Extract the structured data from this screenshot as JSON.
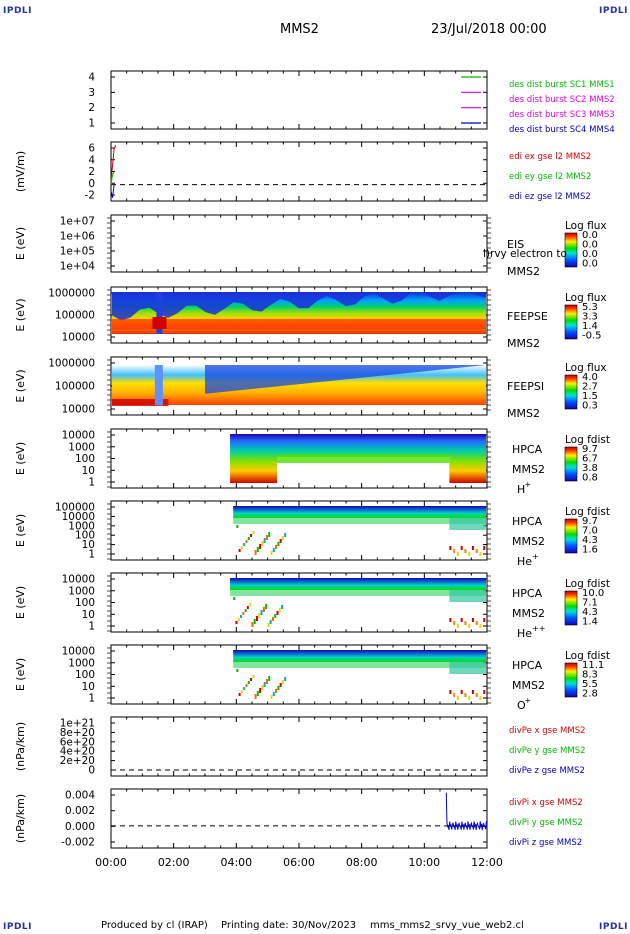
{
  "header": {
    "corner_tl": "IPDLI",
    "corner_tr": "IPDLI",
    "corner_bl": "IPDLI",
    "corner_br": "IPDLI",
    "title": "MMS2",
    "datetime": "23/Jul/2018 00:00"
  },
  "footer": {
    "produced_by": "Produced by cl (IRAP)",
    "printing_date": "Printing date: 30/Nov/2023",
    "script": "mms_mms2_srvy_vue_web2.cl"
  },
  "colors": {
    "red": "#dd0000",
    "green": "#00bb00",
    "blue": "#0000cc",
    "magenta": "#dd00dd",
    "axis": "#000000"
  },
  "chart_data": [
    {
      "type": "line",
      "panel": "burst",
      "yticks": [
        "4",
        "3",
        "2",
        "1"
      ],
      "series": [
        {
          "name": "des dist burst SC1 MMS1",
          "color": "#00bb00",
          "level": 4
        },
        {
          "name": "des dist burst SC2 MMS2",
          "color": "#dd00dd",
          "level": 3
        },
        {
          "name": "des dist burst SC3 MMS3",
          "color": "#dd00dd",
          "level": 2
        },
        {
          "name": "des dist burst SC4 MMS4",
          "color": "#0000cc",
          "level": 1
        }
      ]
    },
    {
      "type": "line",
      "panel": "edi",
      "ylabel": "(mV/m)",
      "ylim": [
        -2.5,
        6.5
      ],
      "yticks": [
        "6",
        "4",
        "2",
        "0",
        "-2"
      ],
      "series": [
        {
          "name": "edi ex gse l2 MMS2",
          "color": "#dd0000",
          "x": [
            0.0,
            0.05,
            0.1,
            0.15
          ],
          "y": [
            0.5,
            3,
            5.5,
            6
          ]
        },
        {
          "name": "edi ey gse l2 MMS2",
          "color": "#00bb00",
          "x": [
            0.0,
            0.05,
            0.1
          ],
          "y": [
            0,
            1.5,
            2
          ]
        },
        {
          "name": "edi ez gse l2 MMS2",
          "color": "#0000cc",
          "x": [
            0.0,
            0.05,
            0.1
          ],
          "y": [
            -1,
            -2,
            0
          ]
        }
      ]
    },
    {
      "type": "heatmap",
      "panel": "eis",
      "ylabel": "E (eV)",
      "yticks": [
        "1e+07",
        "1e+06",
        "1e+05",
        "1e+04"
      ],
      "labels": [
        "EIS",
        "MMS2"
      ],
      "overlay": "l)rvy electron to",
      "cbar_title": "Log flux",
      "cbar_ticks": [
        "0.0",
        "0.0",
        "0.0",
        "0.0"
      ]
    },
    {
      "type": "heatmap",
      "panel": "feeps_e",
      "ylabel": "E (eV)",
      "yticks": [
        "1000000",
        "100000",
        "10000"
      ],
      "labels": [
        "FEEPSE",
        "MMS2"
      ],
      "cbar_title": "Log flux",
      "cbar_ticks": [
        "5.3",
        "3.3",
        "1.4",
        "-0.5"
      ]
    },
    {
      "type": "heatmap",
      "panel": "feeps_i",
      "ylabel": "E (eV)",
      "yticks": [
        "1000000",
        "100000",
        "10000"
      ],
      "labels": [
        "FEEPSI",
        "MMS2"
      ],
      "cbar_title": "Log flux",
      "cbar_ticks": [
        "4.0",
        "2.7",
        "1.5",
        "0.3"
      ]
    },
    {
      "type": "heatmap",
      "panel": "hpca_h",
      "ylabel": "E (eV)",
      "yticks": [
        "10000",
        "1000",
        "100",
        "10",
        "1"
      ],
      "labels": [
        "HPCA",
        "MMS2"
      ],
      "species": "H",
      "charge": "+",
      "cbar_title": "Log fdist",
      "cbar_ticks": [
        "9.7",
        "6.7",
        "3.8",
        "0.8"
      ]
    },
    {
      "type": "heatmap",
      "panel": "hpca_he",
      "ylabel": "E (eV)",
      "yticks": [
        "100000",
        "10000",
        "1000",
        "100",
        "10",
        "1"
      ],
      "labels": [
        "HPCA",
        "MMS2"
      ],
      "species": "He",
      "charge": "+",
      "cbar_title": "Log fdist",
      "cbar_ticks": [
        "9.7",
        "7.0",
        "4.3",
        "1.6"
      ]
    },
    {
      "type": "heatmap",
      "panel": "hpca_he2",
      "ylabel": "E (eV)",
      "yticks": [
        "10000",
        "1000",
        "100",
        "10",
        "1"
      ],
      "labels": [
        "HPCA",
        "MMS2"
      ],
      "species": "He",
      "charge": "++",
      "cbar_title": "Log fdist",
      "cbar_ticks": [
        "10.0",
        "7.1",
        "4.3",
        "1.4"
      ]
    },
    {
      "type": "heatmap",
      "panel": "hpca_o",
      "ylabel": "E (eV)",
      "yticks": [
        "10000",
        "1000",
        "100",
        "10",
        "1"
      ],
      "labels": [
        "HPCA",
        "MMS2"
      ],
      "species": "O",
      "charge": "+",
      "cbar_title": "Log fdist",
      "cbar_ticks": [
        "11.1",
        "8.3",
        "5.5",
        "2.8"
      ]
    },
    {
      "type": "line",
      "panel": "divpe",
      "ylabel": "(nPa/km)",
      "yticks": [
        "1e+21",
        "8e+20",
        "6e+20",
        "4e+20",
        "2e+20",
        "0"
      ],
      "series": [
        {
          "name": "divPe x gse MMS2",
          "color": "#dd0000"
        },
        {
          "name": "divPe y gse MMS2",
          "color": "#00bb00"
        },
        {
          "name": "divPe z gse MMS2",
          "color": "#0000cc"
        }
      ]
    },
    {
      "type": "line",
      "panel": "divpi",
      "ylabel": "(nPa/km)",
      "ylim": [
        -0.003,
        0.005
      ],
      "yticks": [
        "0.004",
        "0.002",
        "0.000",
        "-0.002"
      ],
      "series": [
        {
          "name": "divPi x gse MMS2",
          "color": "#dd0000"
        },
        {
          "name": "divPi y gse MMS2",
          "color": "#00bb00"
        },
        {
          "name": "divPi z gse MMS2",
          "color": "#0000cc"
        }
      ]
    }
  ],
  "xaxis": {
    "ticks": [
      "00:00",
      "02:00",
      "04:00",
      "06:00",
      "08:00",
      "10:00",
      "12:00"
    ],
    "range_hours": [
      0,
      12
    ]
  }
}
